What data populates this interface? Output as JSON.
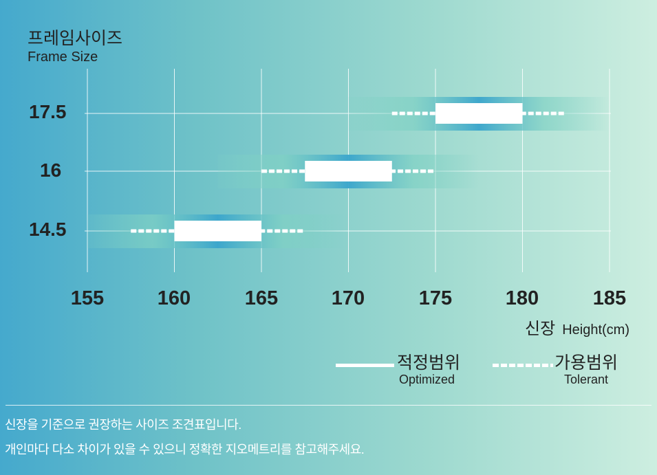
{
  "title": {
    "ko": "프레임사이즈",
    "en": "Frame Size"
  },
  "chart_data": {
    "type": "range-bar",
    "title": "프레임사이즈 Frame Size",
    "xlabel": {
      "ko": "신장",
      "en": "Height(cm)"
    },
    "xlim": [
      155,
      185
    ],
    "xticks": [
      "155",
      "160",
      "165",
      "170",
      "175",
      "180",
      "185"
    ],
    "grid": true,
    "categories": [
      "17.5",
      "16",
      "14.5"
    ],
    "series": [
      {
        "name": "적정범위 Optimized",
        "style": "solid",
        "ranges": [
          [
            175,
            180
          ],
          [
            167.5,
            172.5
          ],
          [
            160,
            165
          ]
        ]
      },
      {
        "name": "가용범위 Tolerant",
        "style": "dashed",
        "ranges": [
          [
            172.5,
            182.5
          ],
          [
            165,
            175
          ],
          [
            157.5,
            167.5
          ]
        ]
      }
    ],
    "legend_position": "bottom-right",
    "colors": {
      "bar": "#ffffff",
      "glow": "#3aa5cc",
      "glow_edge": "#7fd1c4"
    }
  },
  "legend": [
    {
      "ko": "적정범위",
      "en": "Optimized"
    },
    {
      "ko": "가용범위",
      "en": "Tolerant"
    }
  ],
  "notes": [
    "신장을 기준으로 권장하는 사이즈 조견표입니다.",
    "개인마다 다소 차이가 있을 수 있으니 정확한 지오메트리를 참고해주세요."
  ]
}
